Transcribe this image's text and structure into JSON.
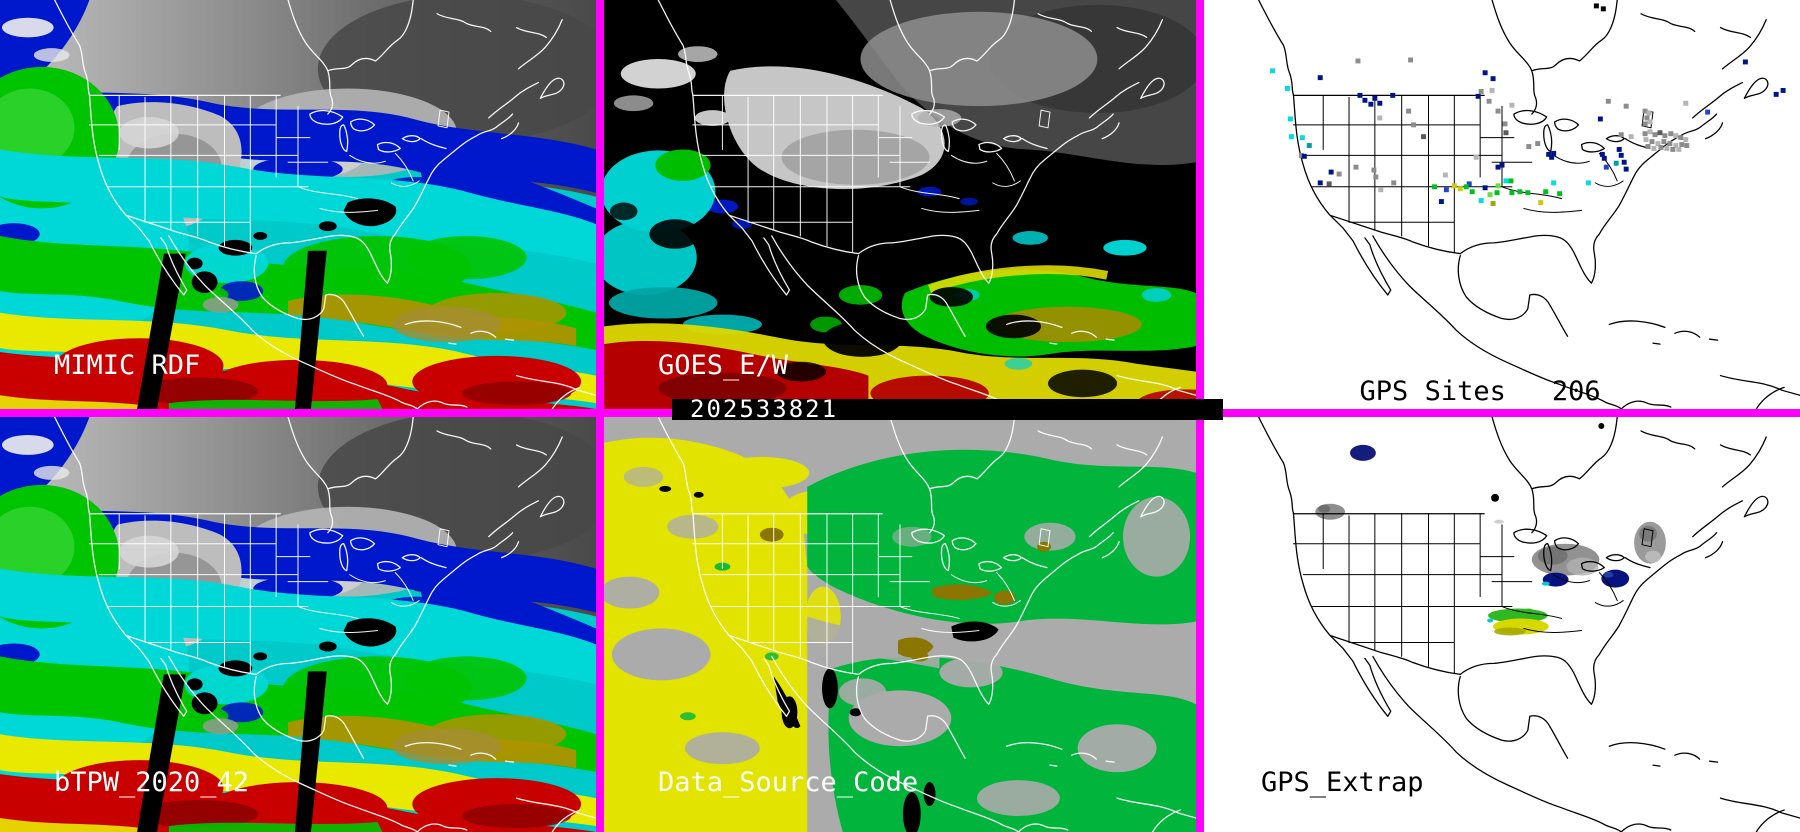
{
  "panels": {
    "mimic_rdf": {
      "label": "MIMIC RDF"
    },
    "goes": {
      "label": "GOES_E/W",
      "timestamp": "202533821"
    },
    "gps_sites": {
      "label": "GPS Sites",
      "count": "206"
    },
    "btpw": {
      "label": "bTPW_2020_42"
    },
    "data_source": {
      "label": "Data_Source_Code"
    },
    "gps_extrap": {
      "label": "GPS_Extrap"
    }
  },
  "frame": {
    "divider_color": "#ff00ff",
    "timestamp_bar_bg": "#000000",
    "timestamp_text_color": "#ffffff"
  },
  "palette": {
    "n": "#001489",
    "b": "#2244cc",
    "c": "#00dede",
    "t": "#00a0a0",
    "g": "#00c020",
    "lg": "#66dd44",
    "y": "#cccc00",
    "o": "#99aa00",
    "g1": "#5a5a5a",
    "g2": "#8c8c8c",
    "g3": "#b4b4b4",
    "g4": "#d8d8d8",
    "k": "#000000"
  },
  "tpw_colors": {
    "low_gray": "#bdbdbd",
    "blue": "#0018cc",
    "cyan": "#00d8d8",
    "green": "#00c400",
    "olive": "#ad9400",
    "yellow": "#e9e900",
    "red": "#c80000",
    "dark_red": "#8f0000",
    "missing": "#000000"
  },
  "data_source_colors": {
    "background_gray": "#ababab",
    "yellow": "#e3e300",
    "green": "#00b43c",
    "olive": "#8a7600",
    "black": "#000000"
  },
  "gps_sites_points": [
    [
      155,
      62,
      "g2"
    ],
    [
      69,
      72,
      "c"
    ],
    [
      84,
      90,
      "c"
    ],
    [
      117,
      79,
      "n"
    ],
    [
      157,
      97,
      "n"
    ],
    [
      162,
      102,
      "n"
    ],
    [
      172,
      100,
      "n"
    ],
    [
      168,
      106,
      "n"
    ],
    [
      177,
      105,
      "n"
    ],
    [
      190,
      97,
      "n"
    ],
    [
      208,
      61,
      "g2"
    ],
    [
      283,
      74,
      "n"
    ],
    [
      291,
      80,
      "n"
    ],
    [
      279,
      93,
      "g2"
    ],
    [
      290,
      92,
      "g3"
    ],
    [
      287,
      103,
      "g2"
    ],
    [
      296,
      113,
      "g2"
    ],
    [
      276,
      98,
      "n"
    ],
    [
      206,
      113,
      "g2"
    ],
    [
      177,
      120,
      "g3"
    ],
    [
      211,
      127,
      "g2"
    ],
    [
      221,
      139,
      "g1"
    ],
    [
      87,
      121,
      "c"
    ],
    [
      88,
      139,
      "c"
    ],
    [
      99,
      140,
      "c"
    ],
    [
      106,
      148,
      "t"
    ],
    [
      98,
      158,
      "g2"
    ],
    [
      101,
      159,
      "n"
    ],
    [
      128,
      175,
      "n"
    ],
    [
      136,
      177,
      "g2"
    ],
    [
      117,
      186,
      "n"
    ],
    [
      126,
      187,
      "g1"
    ],
    [
      153,
      170,
      "g2"
    ],
    [
      171,
      173,
      "g2"
    ],
    [
      173,
      180,
      "g2"
    ],
    [
      191,
      186,
      "g2"
    ],
    [
      178,
      193,
      "g3"
    ],
    [
      274,
      160,
      "g3"
    ],
    [
      243,
      178,
      "g3"
    ],
    [
      296,
      170,
      "n"
    ],
    [
      267,
      187,
      "b"
    ],
    [
      295,
      196,
      "g"
    ],
    [
      279,
      204,
      "c"
    ],
    [
      239,
      205,
      "n"
    ],
    [
      291,
      207,
      "o"
    ],
    [
      310,
      107,
      "g3"
    ],
    [
      303,
      126,
      "g2"
    ],
    [
      304,
      135,
      "g1"
    ],
    [
      336,
      146,
      "g2"
    ],
    [
      327,
      149,
      "g2"
    ],
    [
      347,
      157,
      "n"
    ],
    [
      350,
      160,
      "n"
    ],
    [
      352,
      156,
      "n"
    ],
    [
      407,
      103,
      "g2"
    ],
    [
      425,
      108,
      "g2"
    ],
    [
      399,
      121,
      "n"
    ],
    [
      420,
      137,
      "g2"
    ],
    [
      430,
      139,
      "g3"
    ],
    [
      485,
      105,
      "g3"
    ],
    [
      507,
      114,
      "b"
    ],
    [
      583,
      92,
      "n"
    ],
    [
      576,
      96,
      "n"
    ],
    [
      401,
      157,
      "n"
    ],
    [
      403,
      161,
      "n"
    ],
    [
      415,
      166,
      "t"
    ],
    [
      418,
      152,
      "n"
    ],
    [
      420,
      158,
      "n"
    ],
    [
      423,
      165,
      "n"
    ],
    [
      425,
      172,
      "n"
    ],
    [
      405,
      170,
      "b"
    ],
    [
      387,
      186,
      "c"
    ],
    [
      309,
      184,
      "g"
    ],
    [
      318,
      195,
      "g"
    ],
    [
      310,
      196,
      "g"
    ],
    [
      326,
      196,
      "g"
    ],
    [
      344,
      195,
      "g"
    ],
    [
      352,
      186,
      "c"
    ],
    [
      358,
      197,
      "g"
    ],
    [
      339,
      206,
      "y"
    ],
    [
      300,
      168,
      "n"
    ],
    [
      304,
      184,
      "c"
    ],
    [
      444,
      136,
      "g2"
    ],
    [
      449,
      134,
      "g3"
    ],
    [
      454,
      137,
      "g2"
    ],
    [
      459,
      135,
      "g1"
    ],
    [
      464,
      138,
      "g2"
    ],
    [
      470,
      136,
      "g2"
    ],
    [
      475,
      138,
      "g3"
    ],
    [
      480,
      140,
      "g2"
    ],
    [
      485,
      142,
      "g3"
    ],
    [
      445,
      142,
      "g3"
    ],
    [
      451,
      144,
      "g2"
    ],
    [
      457,
      146,
      "g3"
    ],
    [
      463,
      144,
      "g2"
    ],
    [
      469,
      146,
      "g2"
    ],
    [
      475,
      148,
      "g3"
    ],
    [
      481,
      147,
      "g2"
    ],
    [
      447,
      149,
      "g2"
    ],
    [
      453,
      151,
      "g3"
    ],
    [
      460,
      150,
      "g2"
    ],
    [
      466,
      151,
      "g3"
    ],
    [
      472,
      152,
      "g2"
    ],
    [
      478,
      152,
      "g3"
    ],
    [
      486,
      148,
      "g2"
    ],
    [
      444,
      113,
      "g2"
    ],
    [
      448,
      115,
      "g3"
    ],
    [
      446,
      120,
      "g2"
    ],
    [
      449,
      124,
      "g3"
    ],
    [
      444,
      126,
      "g2"
    ],
    [
      232,
      190,
      "g"
    ],
    [
      244,
      193,
      "b"
    ],
    [
      252,
      189,
      "y"
    ],
    [
      258,
      192,
      "y"
    ],
    [
      264,
      190,
      "g"
    ],
    [
      270,
      195,
      "g"
    ],
    [
      283,
      191,
      "n"
    ],
    [
      288,
      198,
      "lg"
    ],
    [
      296,
      189,
      "lg"
    ],
    [
      395,
      6,
      "k"
    ],
    [
      402,
      9,
      "k"
    ],
    [
      545,
      63,
      "n"
    ]
  ],
  "gps_extrap_blobs": [
    [
      160,
      36,
      13,
      8,
      "#141c7c",
      1
    ],
    [
      127,
      95,
      15,
      8,
      "#8e8e8e",
      1
    ],
    [
      121,
      92,
      6,
      4,
      "#6a6a6a",
      0.9
    ],
    [
      293,
      81,
      4,
      4,
      "#000000",
      1
    ],
    [
      297,
      105,
      5,
      2,
      "#cfcfcf",
      1
    ],
    [
      364,
      143,
      34,
      16,
      "#929292",
      1
    ],
    [
      351,
      139,
      15,
      9,
      "#6f6f6f",
      0.85
    ],
    [
      381,
      150,
      16,
      9,
      "#b2b2b2",
      0.8
    ],
    [
      354,
      163,
      13,
      7,
      "#06137f",
      1
    ],
    [
      344,
      167,
      4,
      2,
      "#00cfcf",
      1
    ],
    [
      449,
      126,
      16,
      21,
      "#9a9a9a",
      1
    ],
    [
      447,
      117,
      9,
      8,
      "#757575",
      0.85
    ],
    [
      452,
      140,
      8,
      6,
      "#c0c0c0",
      0.8
    ],
    [
      414,
      162,
      14,
      9,
      "#06137f",
      1
    ],
    [
      407,
      158,
      5,
      3,
      "#2a3fa8",
      0.9
    ],
    [
      316,
      199,
      30,
      7,
      "#2fb822",
      1
    ],
    [
      327,
      195,
      5,
      3,
      "#2fb822",
      1
    ],
    [
      319,
      210,
      28,
      8,
      "#d8d800",
      1
    ],
    [
      308,
      215,
      16,
      4,
      "#a8a800",
      0.9
    ],
    [
      288,
      204,
      3,
      2,
      "#00cfcf",
      1
    ],
    [
      400,
      9,
      3,
      3,
      "#000000",
      1
    ]
  ]
}
